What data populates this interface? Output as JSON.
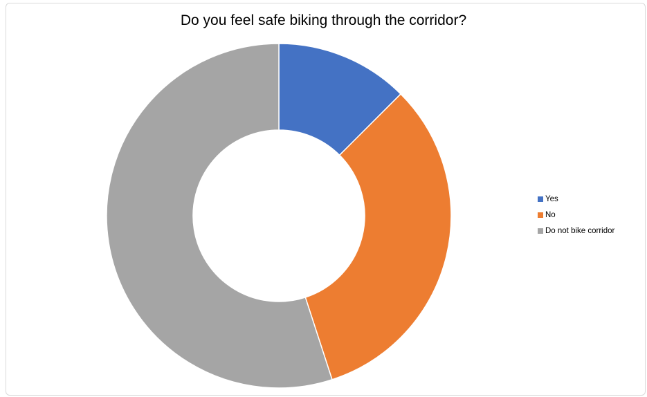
{
  "chart_data": {
    "type": "pie",
    "variant": "doughnut",
    "title": "Do you feel safe biking through the corridor?",
    "categories": [
      "Yes",
      "No",
      "Do not bike corridor"
    ],
    "values": [
      12.5,
      32.5,
      55.0
    ],
    "colors": [
      "#4472c4",
      "#ed7d31",
      "#a5a5a5"
    ],
    "legend_position": "right"
  }
}
